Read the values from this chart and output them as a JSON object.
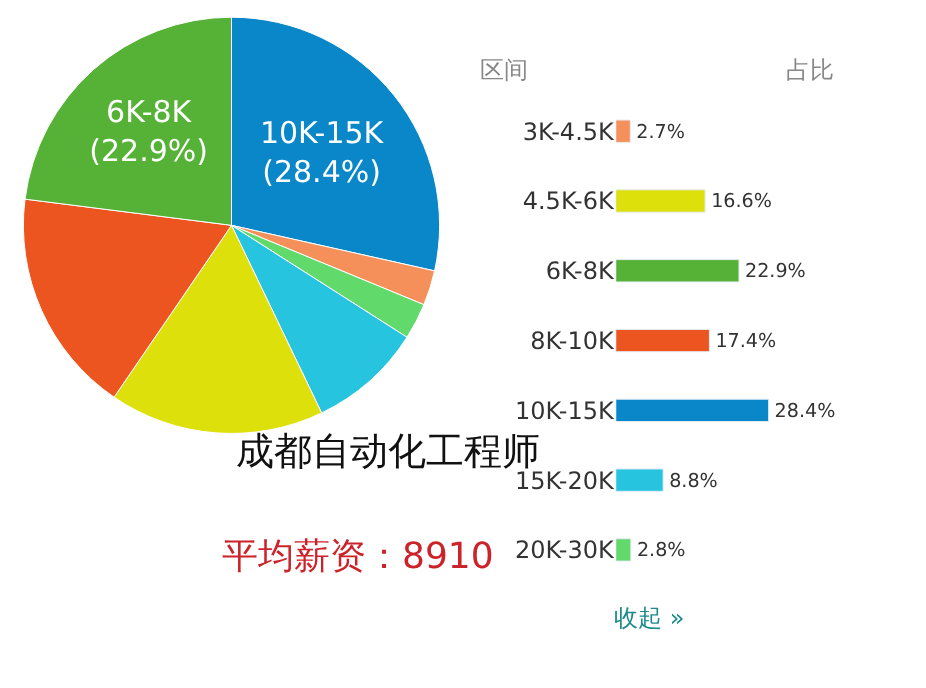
{
  "chart_data": [
    {
      "type": "pie",
      "title": "成都自动化工程师",
      "subtitle": "平均薪资：8910",
      "categories": [
        "10K-15K",
        null,
        null,
        null,
        null,
        null,
        "6K-8K"
      ],
      "values": [
        28.4,
        2.7,
        2.8,
        8.8,
        16.6,
        17.4,
        22.9
      ],
      "colors": [
        "#0a87c8",
        "#f5905a",
        "#62d96b",
        "#27c4e0",
        "#dde00a",
        "#ec5420",
        "#55b236"
      ],
      "value_labels": [
        "(28.4%)",
        null,
        null,
        null,
        null,
        null,
        "(22.9%)"
      ]
    },
    {
      "type": "bar",
      "orientation": "horizontal",
      "categories": [
        "3K-4.5K",
        "4.5K-6K",
        "6K-8K",
        "8K-10K",
        "10K-15K",
        "15K-20K",
        "20K-30K"
      ],
      "values": [
        2.7,
        16.6,
        22.9,
        17.4,
        28.4,
        8.8,
        2.8
      ],
      "colors": [
        "#f5905a",
        "#dde00a",
        "#55b236",
        "#ec5420",
        "#0a87c8",
        "#27c4e0",
        "#62d96b"
      ],
      "value_labels": [
        "2.7%",
        "16.6%",
        "22.9%",
        "17.4%",
        "28.4%",
        "8.8%",
        "2.8%"
      ],
      "annotations": [
        "区间",
        "占比",
        "收起 »"
      ]
    }
  ]
}
